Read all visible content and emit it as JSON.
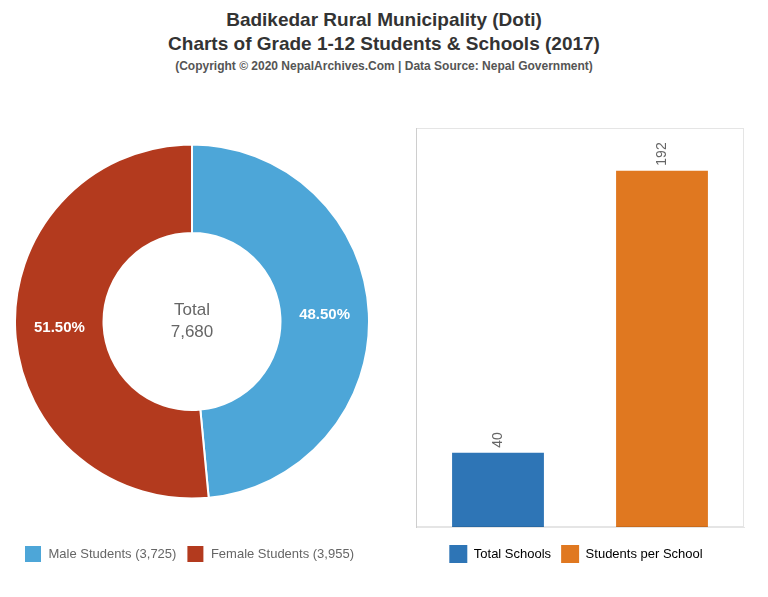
{
  "title": [
    "Badikedar Rural Municipality (Doti)",
    "Charts of Grade 1-12 Students & Schools (2017)"
  ],
  "subtitle": "(Copyright © 2020 NepalArchives.Com | Data Source: Nepal Government)",
  "chart_data": [
    {
      "type": "doughnut",
      "categories": [
        "Male Students (3,725)",
        "Female Students (3,955)"
      ],
      "values": [
        48.5,
        51.5
      ],
      "value_labels": [
        "48.50%",
        "51.50%"
      ],
      "colors": [
        "#4da6d8",
        "#b33a1e"
      ],
      "data_labels": true,
      "legend": "lower left",
      "annotations": [
        "Total",
        "7,680"
      ]
    },
    {
      "type": "bar",
      "categories": [
        "Total Schools",
        "Students per School"
      ],
      "values": [
        40,
        192
      ],
      "colors": [
        "#2e75b6",
        "#e07820"
      ],
      "ylim": [
        0,
        215
      ],
      "yticks": [],
      "tick_labels": false,
      "grid": false,
      "data_labels": true,
      "legend": "lower center"
    }
  ]
}
